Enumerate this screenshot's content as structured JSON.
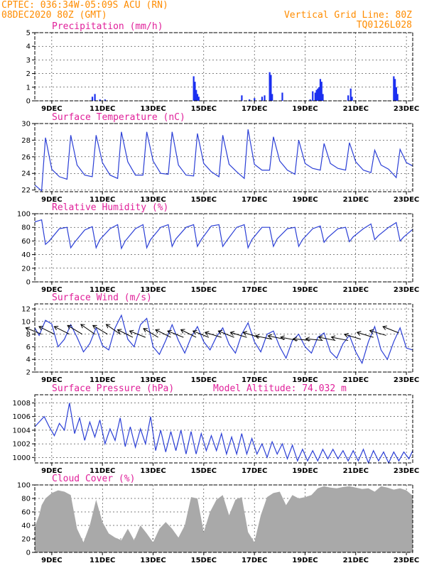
{
  "header": {
    "line1_left": "CPTEC:   036:34W-05:09S   ACU (RN)",
    "line2_left": "08DEC2020 80Z (GMT)",
    "line1_right": "Vertical Grid Line: 80Z",
    "line2_right": "TQ0126L028"
  },
  "colors": {
    "line": "#2b3fd6",
    "bar": "#1b2ff0",
    "cloud": "#a9a9a9",
    "title": "#e0209a",
    "header": "#ff8c00"
  },
  "chart_data": [
    {
      "type": "bar",
      "title": "Precipitation (mm/h)",
      "ylim": [
        0,
        5
      ],
      "yticks": [
        "0",
        "1",
        "2",
        "3",
        "4",
        "5"
      ],
      "xticks": [
        "9DEC",
        "11DEC",
        "13DEC",
        "15DEC",
        "17DEC",
        "19DEC",
        "21DEC",
        "23DEC"
      ],
      "xlim": [
        8.33,
        23.25
      ],
      "x": [
        10.6,
        10.7,
        10.9,
        11.1,
        14.6,
        14.65,
        14.7,
        14.75,
        14.8,
        16.5,
        16.8,
        17.0,
        17.3,
        17.4,
        17.6,
        17.65,
        17.7,
        18.1,
        19.2,
        19.3,
        19.4,
        19.45,
        19.5,
        19.55,
        19.6,
        19.65,
        19.7,
        20.7,
        20.8,
        20.85,
        22.5,
        22.55,
        22.6,
        22.65
      ],
      "values": [
        0.3,
        0.5,
        0.1,
        0.1,
        1.8,
        1.4,
        0.8,
        0.5,
        0.3,
        0.4,
        0.1,
        0.2,
        0.3,
        0.4,
        2.1,
        1.9,
        0.5,
        0.6,
        0.1,
        0.7,
        0.6,
        0.8,
        0.9,
        1.0,
        1.6,
        1.4,
        0.5,
        0.4,
        0.9,
        0.3,
        1.8,
        1.6,
        1.0,
        0.5
      ]
    },
    {
      "type": "line",
      "title": "Surface Temperature (nC)",
      "ylim": [
        21.8,
        30
      ],
      "yticks": [
        "22",
        "24",
        "26",
        "28",
        "30"
      ],
      "xticks": [
        "9DEC",
        "11DEC",
        "13DEC",
        "15DEC",
        "17DEC",
        "19DEC",
        "21DEC",
        "23DEC"
      ],
      "xlim": [
        8.33,
        23.25
      ],
      "x": [
        8.33,
        8.6,
        8.75,
        9.0,
        9.3,
        9.6,
        9.75,
        10.0,
        10.3,
        10.6,
        10.75,
        11.0,
        11.3,
        11.6,
        11.75,
        12.0,
        12.3,
        12.6,
        12.75,
        13.0,
        13.3,
        13.6,
        13.75,
        14.0,
        14.3,
        14.6,
        14.75,
        15.0,
        15.3,
        15.6,
        15.75,
        16.0,
        16.3,
        16.6,
        16.75,
        17.0,
        17.3,
        17.6,
        17.75,
        18.0,
        18.3,
        18.6,
        18.75,
        19.0,
        19.3,
        19.6,
        19.75,
        20.0,
        20.3,
        20.6,
        20.75,
        21.0,
        21.3,
        21.6,
        21.75,
        22.0,
        22.3,
        22.6,
        22.75,
        23.0,
        23.25
      ],
      "values": [
        22.6,
        21.9,
        28.3,
        24.5,
        23.6,
        23.3,
        28.6,
        25.0,
        23.8,
        23.6,
        28.6,
        25.3,
        23.8,
        23.4,
        29.0,
        25.4,
        23.8,
        23.8,
        29.0,
        25.5,
        24.0,
        23.9,
        29.0,
        25.0,
        23.8,
        23.7,
        28.8,
        25.2,
        24.2,
        23.6,
        28.6,
        25.1,
        24.2,
        23.4,
        29.3,
        25.1,
        24.4,
        24.4,
        28.4,
        25.5,
        24.4,
        23.9,
        28.0,
        25.2,
        24.6,
        24.4,
        27.6,
        25.2,
        24.6,
        24.4,
        27.7,
        25.4,
        24.4,
        24.1,
        26.8,
        25.0,
        24.5,
        23.5,
        26.9,
        25.3,
        24.9
      ]
    },
    {
      "type": "line",
      "title": "Relative Humidity (%)",
      "ylim": [
        0,
        100
      ],
      "yticks": [
        "0",
        "20",
        "40",
        "60",
        "80",
        "100"
      ],
      "xticks": [
        "9DEC",
        "11DEC",
        "13DEC",
        "15DEC",
        "17DEC",
        "19DEC",
        "21DEC",
        "23DEC"
      ],
      "xlim": [
        8.33,
        23.25
      ],
      "x": [
        8.33,
        8.6,
        8.75,
        8.9,
        9.3,
        9.6,
        9.75,
        9.9,
        10.3,
        10.6,
        10.75,
        10.9,
        11.3,
        11.6,
        11.75,
        11.9,
        12.3,
        12.6,
        12.75,
        12.9,
        13.3,
        13.6,
        13.75,
        13.9,
        14.3,
        14.6,
        14.75,
        14.9,
        15.3,
        15.6,
        15.75,
        15.9,
        16.3,
        16.6,
        16.75,
        16.9,
        17.3,
        17.6,
        17.75,
        17.9,
        18.3,
        18.6,
        18.75,
        18.9,
        19.3,
        19.6,
        19.75,
        19.9,
        20.3,
        20.6,
        20.75,
        20.9,
        21.3,
        21.6,
        21.75,
        21.9,
        22.3,
        22.6,
        22.75,
        22.9,
        23.25
      ],
      "values": [
        88,
        91,
        55,
        60,
        78,
        80,
        50,
        58,
        76,
        81,
        50,
        62,
        78,
        84,
        49,
        60,
        78,
        84,
        50,
        62,
        80,
        84,
        52,
        63,
        80,
        84,
        52,
        62,
        82,
        84,
        52,
        60,
        80,
        84,
        50,
        62,
        80,
        80,
        52,
        63,
        78,
        80,
        52,
        62,
        78,
        82,
        58,
        65,
        78,
        80,
        59,
        66,
        78,
        85,
        62,
        68,
        80,
        87,
        60,
        66,
        77
      ]
    },
    {
      "type": "line",
      "title": "Surface Wind (m/s)",
      "ylim": [
        2,
        12.8
      ],
      "yticks": [
        "2",
        "4",
        "6",
        "8",
        "10",
        "12"
      ],
      "xticks": [
        "9DEC",
        "11DEC",
        "13DEC",
        "15DEC",
        "17DEC",
        "19DEC",
        "21DEC",
        "23DEC"
      ],
      "xlim": [
        8.33,
        23.25
      ],
      "x": [
        8.33,
        8.5,
        8.75,
        9.0,
        9.25,
        9.5,
        9.75,
        10.0,
        10.25,
        10.5,
        10.75,
        11.0,
        11.25,
        11.5,
        11.75,
        12.0,
        12.25,
        12.5,
        12.75,
        13.0,
        13.25,
        13.5,
        13.75,
        14.0,
        14.25,
        14.5,
        14.75,
        15.0,
        15.25,
        15.5,
        15.75,
        16.0,
        16.25,
        16.5,
        16.75,
        17.0,
        17.25,
        17.5,
        17.75,
        18.0,
        18.25,
        18.5,
        18.75,
        19.0,
        19.25,
        19.5,
        19.75,
        20.0,
        20.25,
        20.5,
        20.75,
        21.0,
        21.25,
        21.5,
        21.75,
        22.0,
        22.25,
        22.5,
        22.75,
        23.0,
        23.25
      ],
      "values": [
        9.0,
        7.8,
        10.2,
        9.6,
        6.0,
        7.2,
        9.5,
        7.5,
        5.2,
        6.5,
        9.0,
        6.2,
        5.5,
        9.0,
        11.0,
        7.2,
        6.0,
        9.5,
        10.5,
        6.0,
        4.8,
        7.0,
        9.5,
        7.0,
        5.0,
        7.5,
        9.2,
        6.8,
        5.5,
        7.6,
        9.0,
        6.4,
        5.0,
        8.0,
        9.8,
        6.8,
        5.2,
        8.0,
        8.5,
        6.0,
        4.2,
        7.0,
        8.0,
        6.0,
        5.0,
        7.5,
        8.2,
        5.2,
        4.2,
        6.5,
        7.8,
        5.2,
        3.4,
        6.8,
        9.2,
        5.5,
        4.0,
        6.8,
        9.0,
        5.8,
        5.5
      ],
      "arrows": {
        "x": [
          8.6,
          9.1,
          9.7,
          10.2,
          10.7,
          11.2,
          11.7,
          12.2,
          12.7,
          13.2,
          13.7,
          14.2,
          14.7,
          15.2,
          15.7,
          16.2,
          16.7,
          17.2,
          17.7,
          18.2,
          18.7,
          19.2,
          19.7,
          20.2,
          20.7,
          21.2,
          21.7,
          22.2,
          22.7
        ],
        "y": [
          8.0,
          8.0,
          8.0,
          8.0,
          8.0,
          8.0,
          8.0,
          7.5,
          7.5,
          7.5,
          7.5,
          7.5,
          7.5,
          7.5,
          7.5,
          7.5,
          7.5,
          7.5,
          7.2,
          7.2,
          7.0,
          7.0,
          7.0,
          7.0,
          7.0,
          7.2,
          7.5,
          7.8,
          8.2
        ],
        "dx": [
          -1,
          -1,
          -1,
          -1,
          -1,
          -1,
          -1,
          -1,
          -1,
          -1,
          -1,
          -1,
          -1,
          -1,
          -1,
          -1,
          -1,
          -1,
          -1,
          -1,
          -1,
          -1,
          -1,
          -1,
          -1,
          -1,
          -1,
          -1,
          -1
        ],
        "dy": [
          0.4,
          0.5,
          0.5,
          0.6,
          0.7,
          0.6,
          0.7,
          0.5,
          0.4,
          0.6,
          0.5,
          0.4,
          0.5,
          0.4,
          0.3,
          0.4,
          0.3,
          0.3,
          0.2,
          0.2,
          0.2,
          0.1,
          0.1,
          0.2,
          0.2,
          0.3,
          0.3,
          0.3,
          0.4
        ]
      }
    },
    {
      "type": "line",
      "title": "Surface Pressure (hPa)",
      "annotation": "Model Altitude: 74.032 m",
      "ylim": [
        999.2,
        1009.2
      ],
      "yticks": [
        "1000",
        "1002",
        "1004",
        "1006",
        "1008"
      ],
      "xticks": [
        "9DEC",
        "11DEC",
        "13DEC",
        "15DEC",
        "17DEC",
        "19DEC",
        "21DEC",
        "23DEC"
      ],
      "xlim": [
        8.33,
        23.25
      ],
      "x": [
        8.33,
        8.5,
        8.7,
        8.9,
        9.1,
        9.3,
        9.5,
        9.7,
        9.9,
        10.1,
        10.3,
        10.5,
        10.7,
        10.9,
        11.1,
        11.3,
        11.5,
        11.7,
        11.9,
        12.1,
        12.3,
        12.5,
        12.7,
        12.9,
        13.1,
        13.3,
        13.5,
        13.7,
        13.9,
        14.1,
        14.3,
        14.5,
        14.7,
        14.9,
        15.1,
        15.3,
        15.5,
        15.7,
        15.9,
        16.1,
        16.3,
        16.5,
        16.7,
        16.9,
        17.1,
        17.3,
        17.5,
        17.7,
        17.9,
        18.1,
        18.3,
        18.5,
        18.7,
        18.9,
        19.1,
        19.3,
        19.5,
        19.7,
        19.9,
        20.1,
        20.3,
        20.5,
        20.7,
        20.9,
        21.1,
        21.3,
        21.5,
        21.7,
        21.9,
        22.1,
        22.3,
        22.5,
        22.7,
        22.9,
        23.1,
        23.25
      ],
      "values": [
        1004.5,
        1005.2,
        1006.0,
        1004.5,
        1003.2,
        1005.0,
        1004.0,
        1008.0,
        1003.5,
        1005.8,
        1002.5,
        1005.2,
        1003.0,
        1005.5,
        1002.0,
        1004.2,
        1002.5,
        1005.8,
        1001.6,
        1004.5,
        1001.5,
        1004.2,
        1002.0,
        1006.0,
        1001.0,
        1004.0,
        1000.8,
        1003.8,
        1001.0,
        1004.0,
        1000.5,
        1003.8,
        1000.5,
        1003.5,
        1001.0,
        1003.2,
        1001.0,
        1003.5,
        1000.5,
        1003.0,
        1000.5,
        1003.5,
        1000.5,
        1002.8,
        1000.5,
        1002.0,
        1000.0,
        1002.3,
        1000.5,
        1002.0,
        999.8,
        1001.8,
        999.5,
        1001.2,
        999.5,
        1001.0,
        999.5,
        1001.2,
        999.8,
        1001.2,
        999.8,
        1001.0,
        999.5,
        1001.0,
        999.5,
        1001.2,
        999.2,
        1001.0,
        999.5,
        1000.8,
        999.2,
        1000.8,
        999.5,
        1000.8,
        999.8,
        1001.0
      ]
    },
    {
      "type": "area",
      "title": "Cloud Cover (%)",
      "ylim": [
        0,
        100
      ],
      "yticks": [
        "0",
        "20",
        "40",
        "60",
        "80",
        "100"
      ],
      "xticks": [
        "9DEC",
        "11DEC",
        "13DEC",
        "15DEC",
        "17DEC",
        "19DEC",
        "21DEC",
        "23DEC"
      ],
      "xlim": [
        8.33,
        23.25
      ],
      "x": [
        8.33,
        8.5,
        8.6,
        8.75,
        9.0,
        9.25,
        9.5,
        9.75,
        10.0,
        10.25,
        10.5,
        10.75,
        11.0,
        11.25,
        11.5,
        11.75,
        12.0,
        12.25,
        12.5,
        12.75,
        13.0,
        13.25,
        13.5,
        13.75,
        14.0,
        14.25,
        14.5,
        14.75,
        15.0,
        15.25,
        15.5,
        15.75,
        16.0,
        16.25,
        16.5,
        16.75,
        17.0,
        17.25,
        17.5,
        17.75,
        18.0,
        18.25,
        18.5,
        18.75,
        19.0,
        19.25,
        19.5,
        19.75,
        20.0,
        20.25,
        20.5,
        20.75,
        21.0,
        21.25,
        21.5,
        21.75,
        22.0,
        22.25,
        22.5,
        22.75,
        23.0,
        23.25
      ],
      "values": [
        38,
        55,
        70,
        80,
        88,
        92,
        90,
        85,
        35,
        15,
        40,
        78,
        45,
        28,
        22,
        18,
        35,
        18,
        40,
        28,
        15,
        35,
        45,
        35,
        22,
        40,
        82,
        80,
        30,
        60,
        78,
        85,
        55,
        78,
        82,
        30,
        15,
        55,
        82,
        88,
        90,
        70,
        85,
        80,
        82,
        85,
        95,
        98,
        96,
        95,
        97,
        98,
        96,
        94,
        95,
        90,
        98,
        96,
        93,
        95,
        92,
        84
      ]
    }
  ]
}
